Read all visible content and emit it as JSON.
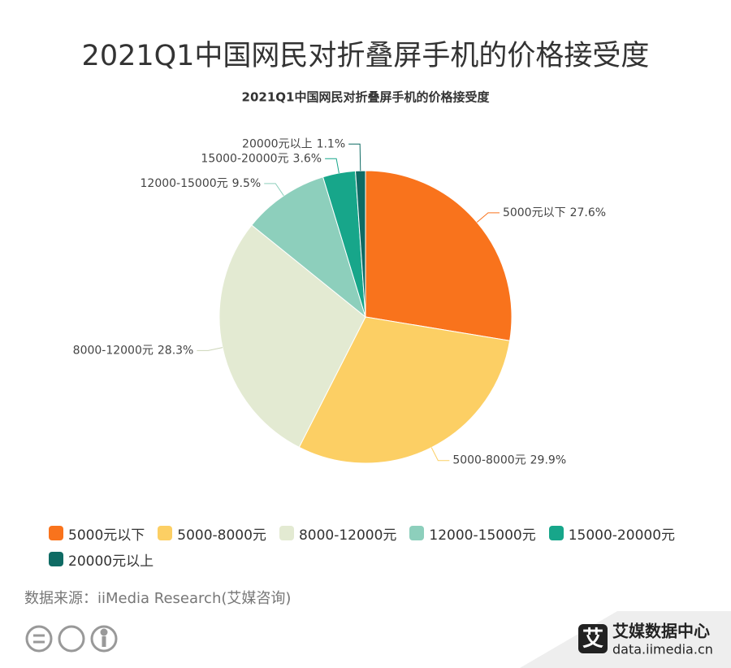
{
  "page_title": "2021Q1中国网民对折叠屏手机的价格接受度",
  "chart_data": {
    "type": "pie",
    "title": "2021Q1中国网民对折叠屏手机的价格接受度",
    "categories": [
      "5000元以下",
      "5000-8000元",
      "8000-12000元",
      "12000-15000元",
      "15000-20000元",
      "20000元以上"
    ],
    "values": [
      27.6,
      29.9,
      28.3,
      9.5,
      3.6,
      1.1
    ],
    "value_labels": [
      "27.6%",
      "29.9%",
      "28.3%",
      "9.5%",
      "3.6%",
      "1.1%"
    ],
    "colors": [
      "#f9731c",
      "#fccf64",
      "#e3ead2",
      "#8dcfbc",
      "#17a68a",
      "#0f6b64"
    ],
    "legend": "bottom"
  },
  "source": "数据来源：iiMedia Research(艾媒咨询)",
  "logo": {
    "icon": "艾",
    "name": "艾媒数据中心",
    "url": "data.iimedia.cn"
  }
}
